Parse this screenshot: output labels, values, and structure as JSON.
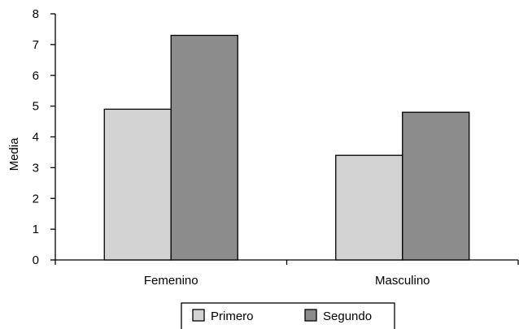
{
  "chart_data": {
    "type": "bar",
    "categories": [
      "Femenino",
      "Masculino"
    ],
    "series": [
      {
        "name": "Primero",
        "values": [
          4.9,
          3.4
        ],
        "color": "#d3d3d3"
      },
      {
        "name": "Segundo",
        "values": [
          7.3,
          4.8
        ],
        "color": "#8c8c8c"
      }
    ],
    "ylabel": "Media",
    "xlabel": "",
    "ylim": [
      0,
      8
    ],
    "yticks": [
      0,
      1,
      2,
      3,
      4,
      5,
      6,
      7,
      8
    ],
    "grid": false,
    "legend_position": "bottom"
  }
}
